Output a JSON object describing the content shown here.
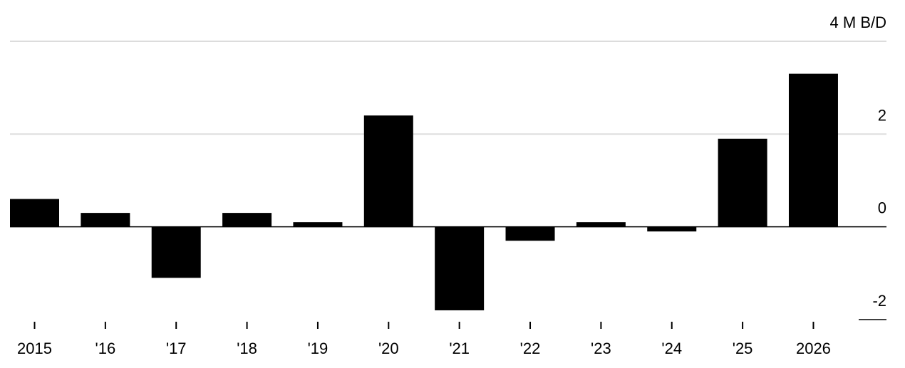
{
  "chart_data": {
    "type": "bar",
    "categories": [
      "2015",
      "'16",
      "'17",
      "'18",
      "'19",
      "'20",
      "'21",
      "'22",
      "'23",
      "'24",
      "'25",
      "2026"
    ],
    "values": [
      0.6,
      0.3,
      -1.1,
      0.3,
      0.1,
      2.4,
      -1.8,
      -0.3,
      0.1,
      -0.1,
      1.9,
      3.3
    ],
    "color": "#000000",
    "ylim": [
      -2,
      4
    ],
    "yticks": [
      -2,
      0,
      2,
      {
        "value": 4,
        "label": "4 M B/D"
      }
    ],
    "grid": true
  }
}
